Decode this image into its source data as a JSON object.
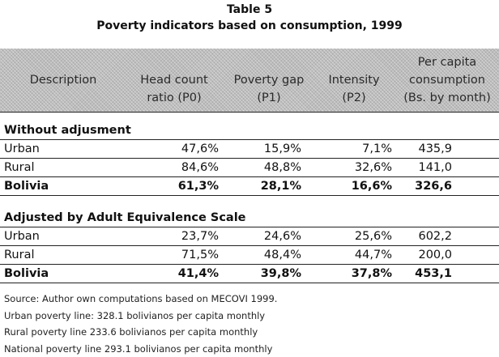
{
  "title": {
    "line1": "Table 5",
    "line2": "Poverty indicators based on consumption, 1999"
  },
  "header": {
    "col0": [
      "Description"
    ],
    "col1": [
      "Head count",
      "ratio (P0)"
    ],
    "col2": [
      "Poverty gap",
      "(P1)"
    ],
    "col3": [
      "Intensity",
      "(P2)"
    ],
    "col4": [
      "Per capita",
      "consumption",
      "(Bs. by month)"
    ]
  },
  "sections": [
    {
      "title": "Without adjusment",
      "rows": [
        {
          "label": "Urban",
          "p0": "47,6%",
          "p1": "15,9%",
          "p2": "7,1%",
          "cons": "435,9"
        },
        {
          "label": "Rural",
          "p0": "84,6%",
          "p1": "48,8%",
          "p2": "32,6%",
          "cons": "141,0"
        },
        {
          "label": "Bolivia",
          "p0": "61,3%",
          "p1": "28,1%",
          "p2": "16,6%",
          "cons": "326,6"
        }
      ]
    },
    {
      "title": "Adjusted by Adult Equivalence Scale",
      "rows": [
        {
          "label": "Urban",
          "p0": "23,7%",
          "p1": "24,6%",
          "p2": "25,6%",
          "cons": "602,2"
        },
        {
          "label": "Rural",
          "p0": "71,5%",
          "p1": "48,4%",
          "p2": "44,7%",
          "cons": "200,0"
        },
        {
          "label": "Bolivia",
          "p0": "41,4%",
          "p1": "39,8%",
          "p2": "37,8%",
          "cons": "453,1"
        }
      ]
    }
  ],
  "notes": [
    "Source: Author own computations based on MECOVI 1999.",
    "Urban poverty line: 328.1 bolivianos per capita monthly",
    "Rural poverty line 233.6  bolivianos per capita monthly",
    "National poverty line 293.1 bolivianos per capita monthly"
  ]
}
